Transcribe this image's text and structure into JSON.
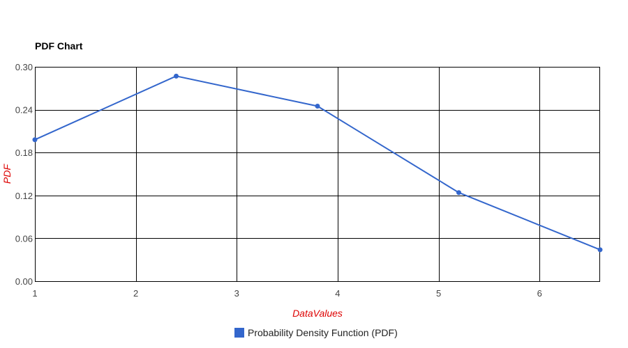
{
  "chart_data": {
    "type": "line",
    "title": "PDF Chart",
    "xlabel": "DataValues",
    "ylabel": "PDF",
    "xlim": [
      1,
      6.6
    ],
    "ylim": [
      0,
      0.3
    ],
    "x_ticks": [
      "1",
      "2",
      "3",
      "4",
      "5",
      "6"
    ],
    "y_ticks": [
      "0.00",
      "0.06",
      "0.12",
      "0.18",
      "0.24",
      "0.30"
    ],
    "grid": true,
    "legend_position": "bottom",
    "series": [
      {
        "name": "Probability Density Function (PDF)",
        "color": "#3366cc",
        "x": [
          1.0,
          2.4,
          3.8,
          5.2,
          6.6
        ],
        "y": [
          0.198,
          0.287,
          0.245,
          0.124,
          0.044
        ]
      }
    ],
    "colors": {
      "axis_title": "#dd0000",
      "grid": "#000000",
      "tick_label": "#444444"
    }
  }
}
